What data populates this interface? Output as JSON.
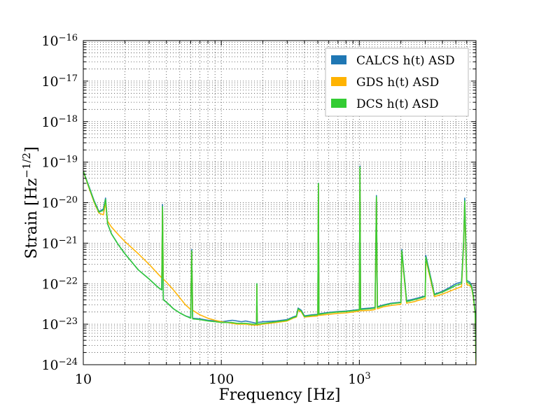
{
  "chart_data": {
    "type": "line",
    "xlabel": "Frequency [Hz]",
    "ylabel_base": "Strain [Hz",
    "ylabel_exp": "−1/2",
    "ylabel_close": "]",
    "x_scale": "log",
    "y_scale": "log",
    "xlim": [
      10,
      7000
    ],
    "ylim": [
      1e-24,
      1e-16
    ],
    "grid": true,
    "legend_position": "top-right",
    "x_ticks": [
      {
        "value": 10,
        "label": "10"
      },
      {
        "value": 100,
        "label": "100"
      },
      {
        "value": 1000,
        "label_base": "10",
        "label_exp": "3"
      }
    ],
    "y_ticks": [
      {
        "value": 1e-16,
        "label_base": "10",
        "label_exp": "−16"
      },
      {
        "value": 1e-17,
        "label_base": "10",
        "label_exp": "−17"
      },
      {
        "value": 1e-18,
        "label_base": "10",
        "label_exp": "−18"
      },
      {
        "value": 1e-19,
        "label_base": "10",
        "label_exp": "−19"
      },
      {
        "value": 1e-20,
        "label_base": "10",
        "label_exp": "−20"
      },
      {
        "value": 1e-21,
        "label_base": "10",
        "label_exp": "−21"
      },
      {
        "value": 1e-22,
        "label_base": "10",
        "label_exp": "−22"
      },
      {
        "value": 1e-23,
        "label_base": "10",
        "label_exp": "−23"
      },
      {
        "value": 1e-24,
        "label_base": "10",
        "label_exp": "−24"
      }
    ],
    "series": [
      {
        "name": "CALCS h(t) ASD",
        "color": "#1f77b4",
        "x": [
          10,
          11,
          12,
          13,
          14,
          14.5,
          15,
          16,
          18,
          20,
          25,
          30,
          35,
          37,
          37.5,
          38,
          40,
          45,
          50,
          55,
          60,
          61,
          62,
          70,
          80,
          90,
          100,
          110,
          120,
          130,
          140,
          150,
          170,
          180,
          181,
          182,
          200,
          250,
          300,
          330,
          350,
          360,
          380,
          400,
          450,
          500,
          505,
          510,
          600,
          700,
          800,
          900,
          1000,
          1010,
          1020,
          1200,
          1300,
          1330,
          1350,
          1400,
          1500,
          1700,
          2000,
          2030,
          2200,
          2500,
          2700,
          3000,
          3030,
          3500,
          4000,
          4500,
          5000,
          5500,
          5700,
          5800,
          6000,
          6300,
          6500,
          6700,
          6900,
          7000
        ],
        "y": [
          6e-20,
          2.5e-20,
          1.1e-20,
          6e-21,
          7e-21,
          1.3e-20,
          3e-21,
          1.7e-21,
          9e-22,
          5.5e-22,
          2.2e-22,
          1.3e-22,
          8e-23,
          7e-23,
          9e-21,
          4e-23,
          3.5e-23,
          2.4e-23,
          1.9e-23,
          1.6e-23,
          1.45e-23,
          7e-22,
          1.4e-23,
          1.35e-23,
          1.25e-23,
          1.2e-23,
          1.15e-23,
          1.2e-23,
          1.25e-23,
          1.2e-23,
          1.15e-23,
          1.2e-23,
          1.1e-23,
          1.05e-23,
          1e-22,
          1.1e-23,
          1.15e-23,
          1.2e-23,
          1.3e-23,
          1.5e-23,
          1.6e-23,
          2.5e-23,
          2.2e-23,
          1.6e-23,
          1.7e-23,
          1.75e-23,
          3e-20,
          1.8e-23,
          1.95e-23,
          2.05e-23,
          2.1e-23,
          2.2e-23,
          2.3e-23,
          8e-20,
          2.4e-23,
          2.5e-23,
          2.6e-23,
          1.5e-20,
          2.7e-23,
          2.8e-23,
          3e-23,
          3.3e-23,
          3.5e-23,
          7e-22,
          3.8e-23,
          4.2e-23,
          4.5e-23,
          5e-23,
          5e-22,
          5.5e-23,
          6.5e-23,
          8e-23,
          1e-22,
          1.1e-22,
          1.2e-21,
          1.3e-20,
          1.2e-22,
          1.1e-22,
          9e-23,
          5e-23,
          2e-23,
          1.5e-23
        ]
      },
      {
        "name": "GDS h(t) ASD",
        "color": "#ffb300",
        "x": [
          10,
          11,
          12,
          13,
          14,
          14.5,
          15,
          16,
          18,
          20,
          25,
          30,
          35,
          37,
          37.5,
          38,
          40,
          45,
          50,
          55,
          60,
          61,
          62,
          70,
          80,
          90,
          100,
          110,
          120,
          130,
          140,
          150,
          170,
          180,
          181,
          182,
          200,
          250,
          300,
          330,
          350,
          360,
          380,
          400,
          450,
          500,
          505,
          510,
          600,
          700,
          800,
          900,
          1000,
          1010,
          1020,
          1200,
          1300,
          1330,
          1350,
          1400,
          1500,
          1700,
          2000,
          2030,
          2200,
          2500,
          2700,
          3000,
          3030,
          3500,
          4000,
          4500,
          5000,
          5500,
          5700,
          5800,
          6000,
          6300,
          6500,
          6700,
          6900,
          7000
        ],
        "y": [
          6e-20,
          2.3e-20,
          1e-20,
          5.5e-21,
          5e-21,
          1e-20,
          3.5e-21,
          2.5e-21,
          1.6e-21,
          1.1e-21,
          5.5e-22,
          3e-22,
          1.7e-22,
          1.4e-22,
          7e-21,
          1.3e-22,
          1.1e-22,
          7e-23,
          4.5e-23,
          3e-23,
          2.3e-23,
          6e-22,
          2.2e-23,
          1.7e-23,
          1.4e-23,
          1.25e-23,
          1.15e-23,
          1.1e-23,
          1.05e-23,
          1e-23,
          1e-23,
          1e-23,
          9.5e-24,
          9.5e-24,
          9e-23,
          9.5e-24,
          1e-23,
          1.1e-23,
          1.2e-23,
          1.4e-23,
          1.5e-23,
          2.2e-23,
          2e-23,
          1.5e-23,
          1.55e-23,
          1.6e-23,
          2.8e-20,
          1.65e-23,
          1.75e-23,
          1.85e-23,
          1.9e-23,
          2e-23,
          2.1e-23,
          7e-20,
          2.15e-23,
          2.2e-23,
          2.3e-23,
          1.3e-20,
          2.4e-23,
          2.5e-23,
          2.7e-23,
          2.9e-23,
          3.1e-23,
          6e-22,
          3.3e-23,
          3.6e-23,
          3.9e-23,
          4.3e-23,
          4e-22,
          4.8e-23,
          5.5e-23,
          6.5e-23,
          7.5e-23,
          8.5e-23,
          1e-21,
          1e-20,
          9.5e-23,
          9e-23,
          8e-23,
          4.5e-23,
          1.8e-23,
          1e-24
        ]
      },
      {
        "name": "DCS h(t) ASD",
        "color": "#33cc33",
        "x": [
          10,
          11,
          12,
          13,
          14,
          14.5,
          15,
          16,
          18,
          20,
          25,
          30,
          35,
          37,
          37.5,
          38,
          40,
          45,
          50,
          55,
          60,
          61,
          62,
          70,
          80,
          90,
          100,
          110,
          120,
          130,
          140,
          150,
          170,
          180,
          181,
          182,
          200,
          250,
          300,
          330,
          350,
          360,
          380,
          400,
          450,
          500,
          505,
          510,
          600,
          700,
          800,
          900,
          1000,
          1010,
          1020,
          1200,
          1300,
          1330,
          1350,
          1400,
          1500,
          1700,
          2000,
          2030,
          2200,
          2500,
          2700,
          3000,
          3030,
          3500,
          4000,
          4500,
          5000,
          5500,
          5700,
          5800,
          6000,
          6300,
          6500,
          6700,
          6900,
          7000
        ],
        "y": [
          6e-20,
          2.4e-20,
          1.05e-20,
          5.8e-21,
          6.5e-21,
          1.2e-20,
          3e-21,
          1.7e-21,
          9e-22,
          5.5e-22,
          2.2e-22,
          1.3e-22,
          8e-23,
          7e-23,
          8e-21,
          4e-23,
          3.5e-23,
          2.4e-23,
          1.9e-23,
          1.6e-23,
          1.4e-23,
          6.5e-22,
          1.35e-23,
          1.3e-23,
          1.2e-23,
          1.15e-23,
          1.1e-23,
          1.1e-23,
          1.1e-23,
          1.05e-23,
          1.05e-23,
          1.05e-23,
          1e-23,
          1e-23,
          1e-22,
          1e-23,
          1.05e-23,
          1.15e-23,
          1.25e-23,
          1.45e-23,
          1.55e-23,
          2.4e-23,
          2.1e-23,
          1.55e-23,
          1.65e-23,
          1.7e-23,
          3e-20,
          1.75e-23,
          1.9e-23,
          2e-23,
          2.05e-23,
          2.15e-23,
          2.25e-23,
          7.5e-20,
          2.3e-23,
          2.4e-23,
          2.5e-23,
          1.4e-20,
          2.6e-23,
          2.7e-23,
          2.9e-23,
          3.2e-23,
          3.4e-23,
          6.5e-22,
          3.6e-23,
          4e-23,
          4.3e-23,
          4.8e-23,
          4.5e-22,
          5.3e-23,
          6.2e-23,
          7.5e-23,
          9e-23,
          1e-22,
          1.1e-21,
          1.1e-20,
          1.1e-22,
          1e-22,
          8.5e-23,
          4.8e-23,
          1.9e-23,
          1.2e-24
        ]
      }
    ]
  }
}
